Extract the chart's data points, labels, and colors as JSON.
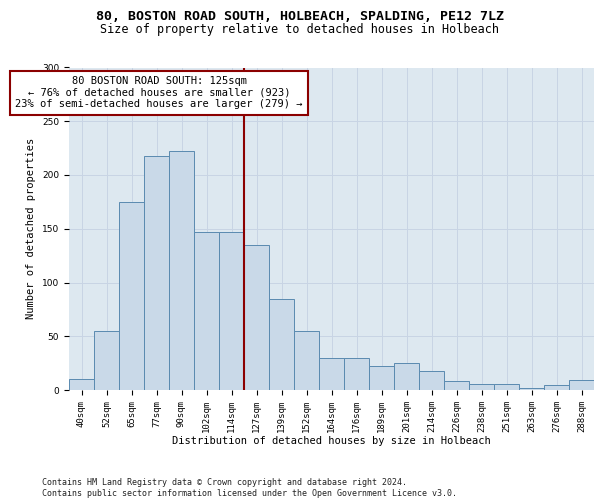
{
  "title": "80, BOSTON ROAD SOUTH, HOLBEACH, SPALDING, PE12 7LZ",
  "subtitle": "Size of property relative to detached houses in Holbeach",
  "xlabel": "Distribution of detached houses by size in Holbeach",
  "ylabel": "Number of detached properties",
  "categories": [
    "40sqm",
    "52sqm",
    "65sqm",
    "77sqm",
    "90sqm",
    "102sqm",
    "114sqm",
    "127sqm",
    "139sqm",
    "152sqm",
    "164sqm",
    "176sqm",
    "189sqm",
    "201sqm",
    "214sqm",
    "226sqm",
    "238sqm",
    "251sqm",
    "263sqm",
    "276sqm",
    "288sqm"
  ],
  "values": [
    10,
    55,
    175,
    218,
    222,
    147,
    147,
    135,
    85,
    55,
    30,
    30,
    22,
    25,
    18,
    8,
    6,
    6,
    2,
    5,
    9
  ],
  "bar_color": "#c9d9e8",
  "bar_edge_color": "#5a8ab0",
  "ref_line_index": 7,
  "ref_line_color": "#8b0000",
  "annotation_line1": "80 BOSTON ROAD SOUTH: 125sqm",
  "annotation_line2": "← 76% of detached houses are smaller (923)",
  "annotation_line3": "23% of semi-detached houses are larger (279) →",
  "annotation_box_color": "#8b0000",
  "annotation_fill": "white",
  "footer_line1": "Contains HM Land Registry data © Crown copyright and database right 2024.",
  "footer_line2": "Contains public sector information licensed under the Open Government Licence v3.0.",
  "grid_color": "#c8d4e4",
  "background_color": "#dde8f0",
  "title_fontsize": 9.5,
  "subtitle_fontsize": 8.5,
  "ylabel_fontsize": 7.5,
  "xlabel_fontsize": 7.5,
  "tick_fontsize": 6.5,
  "footer_fontsize": 6.0,
  "annotation_fontsize": 7.5
}
